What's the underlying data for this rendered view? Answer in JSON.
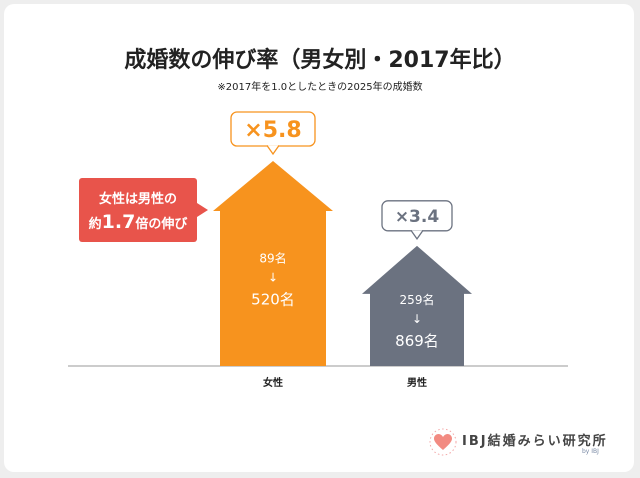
{
  "title": "成婚数の伸び率（男女別・2017年比）",
  "subtitle": "※2017年を1.0としたときの2025年の成婚数",
  "callout": {
    "line1": "女性は男性の",
    "prefix": "約",
    "ratio": "1.7",
    "suffix": "倍の伸び"
  },
  "chart_data": {
    "type": "bar",
    "title": "成婚数の伸び率（男女別・2017年比）",
    "subtitle": "※2017年を1.0としたときの2025年の成婚数",
    "categories": [
      "女性",
      "男性"
    ],
    "values": [
      5.8,
      3.4
    ],
    "multiplier_labels": [
      "×5.8",
      "×3.4"
    ],
    "from_counts": [
      "89名",
      "259名"
    ],
    "to_counts": [
      "520名",
      "869名"
    ],
    "arrow_glyph": "↓",
    "colors": [
      "#f7931e",
      "#6b7280"
    ],
    "ylim": [
      0,
      6
    ]
  },
  "logo": {
    "text": "IBJ結婚みらい研究所",
    "byline": "by IBJ"
  }
}
